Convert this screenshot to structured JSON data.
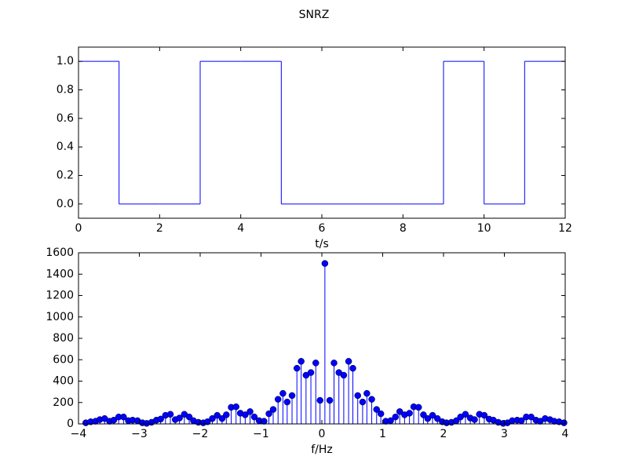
{
  "title": "SNRZ",
  "chart_data": [
    {
      "type": "step",
      "xlabel": "t/s",
      "color": "#0000ff",
      "x": [
        0,
        1,
        2,
        3,
        4,
        5,
        6,
        7,
        8,
        9,
        10,
        11,
        12
      ],
      "values": [
        1,
        0,
        0,
        1,
        1,
        0,
        0,
        0,
        0,
        1,
        0,
        1,
        1
      ],
      "xlim": [
        0,
        12
      ],
      "xticks": [
        0,
        2,
        4,
        6,
        8,
        10,
        12
      ],
      "ylim": [
        -0.1,
        1.1
      ],
      "yticks": [
        {
          "value": 0,
          "label": "0.0"
        },
        0.2,
        0.4,
        0.6,
        0.8,
        {
          "value": 1,
          "label": "1.0"
        }
      ]
    },
    {
      "type": "stem",
      "xlabel": "f/Hz",
      "color": "#0000ff",
      "x": [
        -3.88,
        -3.8,
        -3.72,
        -3.65,
        -3.57,
        -3.49,
        -3.42,
        -3.34,
        -3.26,
        -3.18,
        -3.11,
        -3.03,
        -2.95,
        -2.88,
        -2.8,
        -2.72,
        -2.65,
        -2.57,
        -2.49,
        -2.41,
        -2.34,
        -2.26,
        -2.18,
        -2.11,
        -2.03,
        -1.95,
        -1.88,
        -1.8,
        -1.72,
        -1.64,
        -1.57,
        -1.49,
        -1.41,
        -1.34,
        -1.26,
        -1.18,
        -1.11,
        -1.03,
        -0.95,
        -0.87,
        -0.8,
        -0.72,
        -0.64,
        -0.57,
        -0.49,
        -0.41,
        -0.34,
        -0.26,
        -0.18,
        -0.1,
        -0.03,
        0.05,
        0.13,
        0.2,
        0.28,
        0.36,
        0.44,
        0.51,
        0.59,
        0.67,
        0.74,
        0.82,
        0.9,
        0.97,
        1.05,
        1.13,
        1.21,
        1.28,
        1.36,
        1.44,
        1.51,
        1.59,
        1.67,
        1.74,
        1.82,
        1.9,
        1.98,
        2.05,
        2.13,
        2.21,
        2.28,
        2.36,
        2.44,
        2.51,
        2.59,
        2.67,
        2.75,
        2.82,
        2.9,
        2.98,
        3.05,
        3.13,
        3.21,
        3.28,
        3.36,
        3.44,
        3.52,
        3.59,
        3.67,
        3.75,
        3.82,
        3.9,
        3.98
      ],
      "values": [
        10,
        20,
        25,
        40,
        50,
        25,
        35,
        65,
        65,
        30,
        35,
        30,
        10,
        5,
        15,
        35,
        45,
        80,
        90,
        40,
        55,
        90,
        65,
        30,
        15,
        10,
        20,
        50,
        80,
        50,
        85,
        155,
        160,
        100,
        85,
        115,
        65,
        30,
        25,
        95,
        135,
        230,
        285,
        205,
        265,
        520,
        585,
        455,
        480,
        570,
        220,
        1500,
        220,
        570,
        480,
        455,
        585,
        520,
        265,
        205,
        285,
        230,
        135,
        95,
        25,
        30,
        65,
        115,
        85,
        100,
        160,
        155,
        85,
        50,
        80,
        50,
        20,
        10,
        15,
        30,
        65,
        90,
        55,
        40,
        90,
        80,
        45,
        35,
        15,
        5,
        10,
        30,
        35,
        30,
        65,
        65,
        35,
        25,
        50,
        40,
        25,
        20,
        10
      ],
      "xlim": [
        -4,
        4
      ],
      "xticks": [
        {
          "value": -4,
          "label": "−4"
        },
        {
          "value": -3,
          "label": "−3"
        },
        {
          "value": -2,
          "label": "−2"
        },
        {
          "value": -1,
          "label": "−1"
        },
        0,
        1,
        2,
        3,
        4
      ],
      "ylim": [
        0,
        1600
      ],
      "yticks": [
        0,
        200,
        400,
        600,
        800,
        1000,
        1200,
        1400,
        1600
      ]
    }
  ]
}
